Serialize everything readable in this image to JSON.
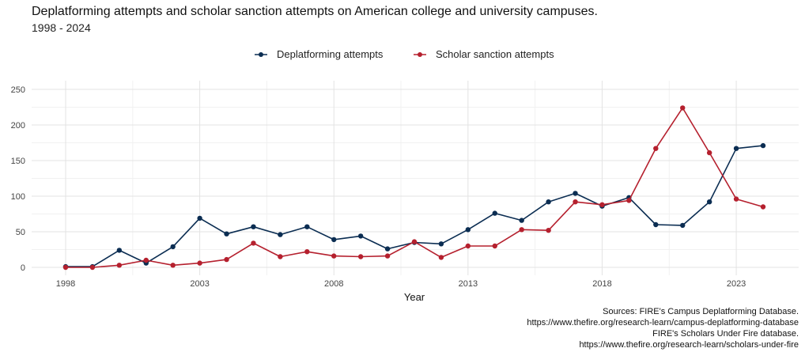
{
  "header": {
    "title": "Deplatforming attempts and scholar sanction attempts on American college and university campuses.",
    "subtitle": "1998 - 2024"
  },
  "sources": {
    "line1": "Sources: FIRE's Campus Deplatforming Database.",
    "line2": "https://www.thefire.org/research-learn/campus-deplatforming-database",
    "line3": "FIRE's Scholars Under Fire database.",
    "line4": "https://www.thefire.org/research-learn/scholars-under-fire"
  },
  "chart_data": {
    "type": "line",
    "title": "Deplatforming attempts and scholar sanction attempts on American college and university campuses.",
    "subtitle": "1998 - 2024",
    "xlabel": "Year",
    "ylabel": "",
    "x": [
      1998,
      1999,
      2000,
      2001,
      2002,
      2003,
      2004,
      2005,
      2006,
      2007,
      2008,
      2009,
      2010,
      2011,
      2012,
      2013,
      2014,
      2015,
      2016,
      2017,
      2018,
      2019,
      2020,
      2021,
      2022,
      2023,
      2024
    ],
    "xlim": [
      1998,
      2024
    ],
    "ylim": [
      0,
      250
    ],
    "xticks": [
      1998,
      2003,
      2008,
      2013,
      2018,
      2023
    ],
    "yticks": [
      0,
      50,
      100,
      150,
      200,
      250
    ],
    "grid": true,
    "legend_position": "top",
    "series": [
      {
        "name": "Deplatforming attempts",
        "color": "#0b2d52",
        "values": [
          1,
          1,
          24,
          6,
          29,
          69,
          47,
          57,
          46,
          57,
          39,
          44,
          26,
          35,
          33,
          53,
          76,
          66,
          92,
          104,
          86,
          98,
          60,
          59,
          92,
          167,
          171
        ]
      },
      {
        "name": "Scholar sanction attempts",
        "color": "#b5202e",
        "values": [
          0,
          0,
          3,
          10,
          3,
          6,
          11,
          34,
          15,
          22,
          16,
          15,
          16,
          36,
          14,
          30,
          30,
          53,
          52,
          92,
          88,
          94,
          167,
          224,
          161,
          96,
          85
        ]
      }
    ]
  }
}
